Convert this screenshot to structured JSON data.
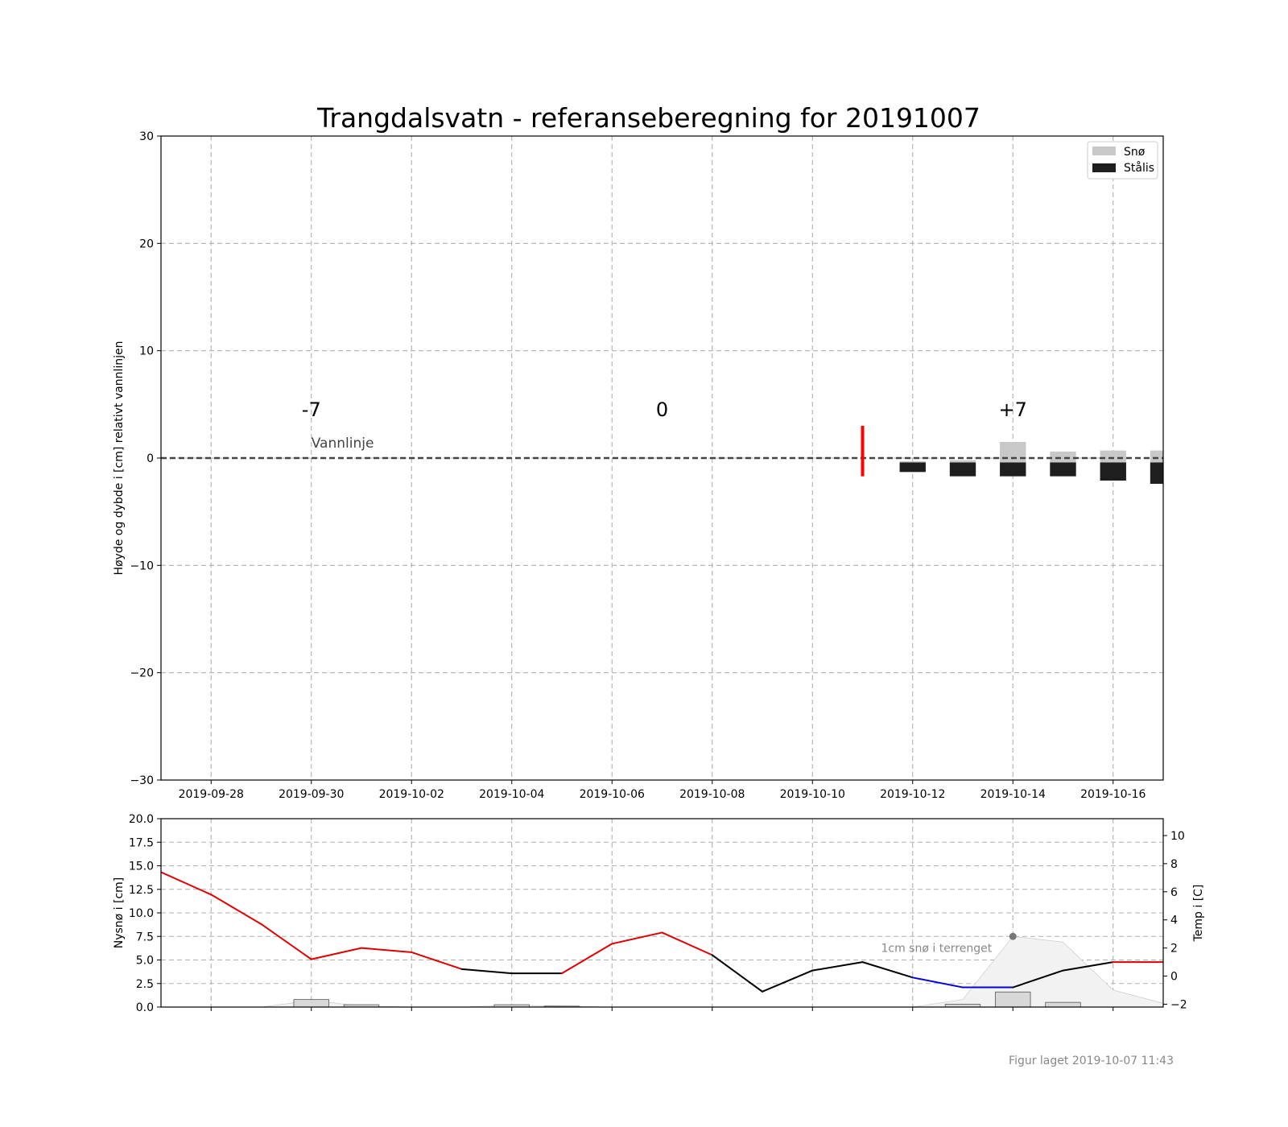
{
  "title": "Trangdalsvatn - referanseberegning for 20191007",
  "footer": "Figur laget 2019-10-07 11:43",
  "colors": {
    "snow": "#c8c8c8",
    "ice": "#1e1e1e",
    "today_marker": "#ff0000",
    "temp_warm": "#e00000",
    "temp_mid": "#000000",
    "temp_cold": "#0000dd",
    "terrain_fill": "#f2f2f2",
    "grid": "#b0b0b0"
  },
  "chart_data": [
    {
      "type": "bar",
      "name": "ice-and-snow",
      "title": "Trangdalsvatn - referanseberegning for 20191007",
      "ylabel": "Høyde og dybde i [cm] relativt vannlinjen",
      "ylim": [
        -30,
        30
      ],
      "yticks": [
        30,
        20,
        10,
        0,
        -10,
        -20,
        -30
      ],
      "ytick_labels": [
        "30",
        "20",
        "10",
        "0",
        "−10",
        "−20",
        "−30"
      ],
      "x_ticks": [
        "2019-09-28",
        "2019-09-30",
        "2019-10-02",
        "2019-10-04",
        "2019-10-06",
        "2019-10-08",
        "2019-10-10",
        "2019-10-12",
        "2019-10-14",
        "2019-10-16"
      ],
      "xlim": [
        "2019-09-27",
        "2019-10-17"
      ],
      "grid": true,
      "legend": {
        "position": "top-right",
        "entries": [
          "Snø",
          "Stålis"
        ]
      },
      "waterline_label": "Vannlinje",
      "today": "2019-10-11",
      "day_markers": [
        {
          "date": "2019-09-30",
          "label": "-7"
        },
        {
          "date": "2019-10-07",
          "label": "0"
        },
        {
          "date": "2019-10-14",
          "label": "+7"
        }
      ],
      "dates": [
        "2019-10-12",
        "2019-10-13",
        "2019-10-14",
        "2019-10-15",
        "2019-10-16",
        "2019-10-17"
      ],
      "series": [
        {
          "name": "Snø",
          "values": [
            0.1,
            0.2,
            1.9,
            1.0,
            1.1,
            1.1
          ]
        },
        {
          "name": "Stålis",
          "values": [
            0.9,
            1.3,
            1.3,
            1.3,
            1.7,
            2.0
          ]
        }
      ]
    },
    {
      "type": "bar",
      "name": "snowfall-and-temperature",
      "ylabel": "Nysnø i [cm]",
      "ylim": [
        0,
        20
      ],
      "yticks": [
        0,
        2.5,
        5,
        7.5,
        10,
        12.5,
        15,
        17.5,
        20
      ],
      "ytick_labels": [
        "0.0",
        "2.5",
        "5.0",
        "7.5",
        "10.0",
        "12.5",
        "15.0",
        "17.5",
        "20.0"
      ],
      "y2label": "Temp i [C]",
      "y2lim": [
        -2.2,
        11.2
      ],
      "y2ticks": [
        -2,
        0,
        2,
        4,
        6,
        8,
        10
      ],
      "y2tick_labels": [
        "−2",
        "0",
        "2",
        "4",
        "6",
        "8",
        "10"
      ],
      "grid": true,
      "annotation": {
        "text": "1cm snø i terrenget",
        "date": "2019-10-14",
        "value": 7.5
      },
      "snowfall": {
        "dates": [
          "2019-09-30",
          "2019-10-01",
          "2019-10-04",
          "2019-10-05",
          "2019-10-13",
          "2019-10-14",
          "2019-10-15"
        ],
        "values": [
          0.8,
          0.25,
          0.25,
          0.1,
          0.3,
          1.6,
          0.5
        ]
      },
      "terrain_snow": {
        "dates": [
          "2019-09-28",
          "2019-09-29",
          "2019-09-30",
          "2019-10-01",
          "2019-10-02",
          "2019-10-03",
          "2019-10-04",
          "2019-10-05",
          "2019-10-06",
          "2019-10-07",
          "2019-10-08",
          "2019-10-09",
          "2019-10-10",
          "2019-10-11",
          "2019-10-12",
          "2019-10-13",
          "2019-10-14",
          "2019-10-15",
          "2019-10-16",
          "2019-10-17"
        ],
        "values": [
          0,
          0,
          0.7,
          0.1,
          0,
          0,
          0.2,
          0.1,
          0,
          0,
          0,
          0,
          0,
          0,
          0,
          0.8,
          7.5,
          6.9,
          1.8,
          0.4
        ]
      },
      "temperature": {
        "dates": [
          "2019-09-27",
          "2019-09-28",
          "2019-09-29",
          "2019-09-30",
          "2019-10-01",
          "2019-10-02",
          "2019-10-03",
          "2019-10-04",
          "2019-10-05",
          "2019-10-06",
          "2019-10-07",
          "2019-10-08",
          "2019-10-09",
          "2019-10-10",
          "2019-10-11",
          "2019-10-12",
          "2019-10-13",
          "2019-10-14",
          "2019-10-15",
          "2019-10-16",
          "2019-10-17"
        ],
        "values": [
          7.4,
          5.8,
          3.7,
          1.2,
          2.0,
          1.7,
          0.5,
          0.2,
          0.2,
          2.3,
          3.1,
          1.5,
          -1.1,
          0.4,
          1.0,
          -0.1,
          -0.8,
          -0.8,
          0.4,
          1.0,
          1.0
        ]
      }
    }
  ]
}
